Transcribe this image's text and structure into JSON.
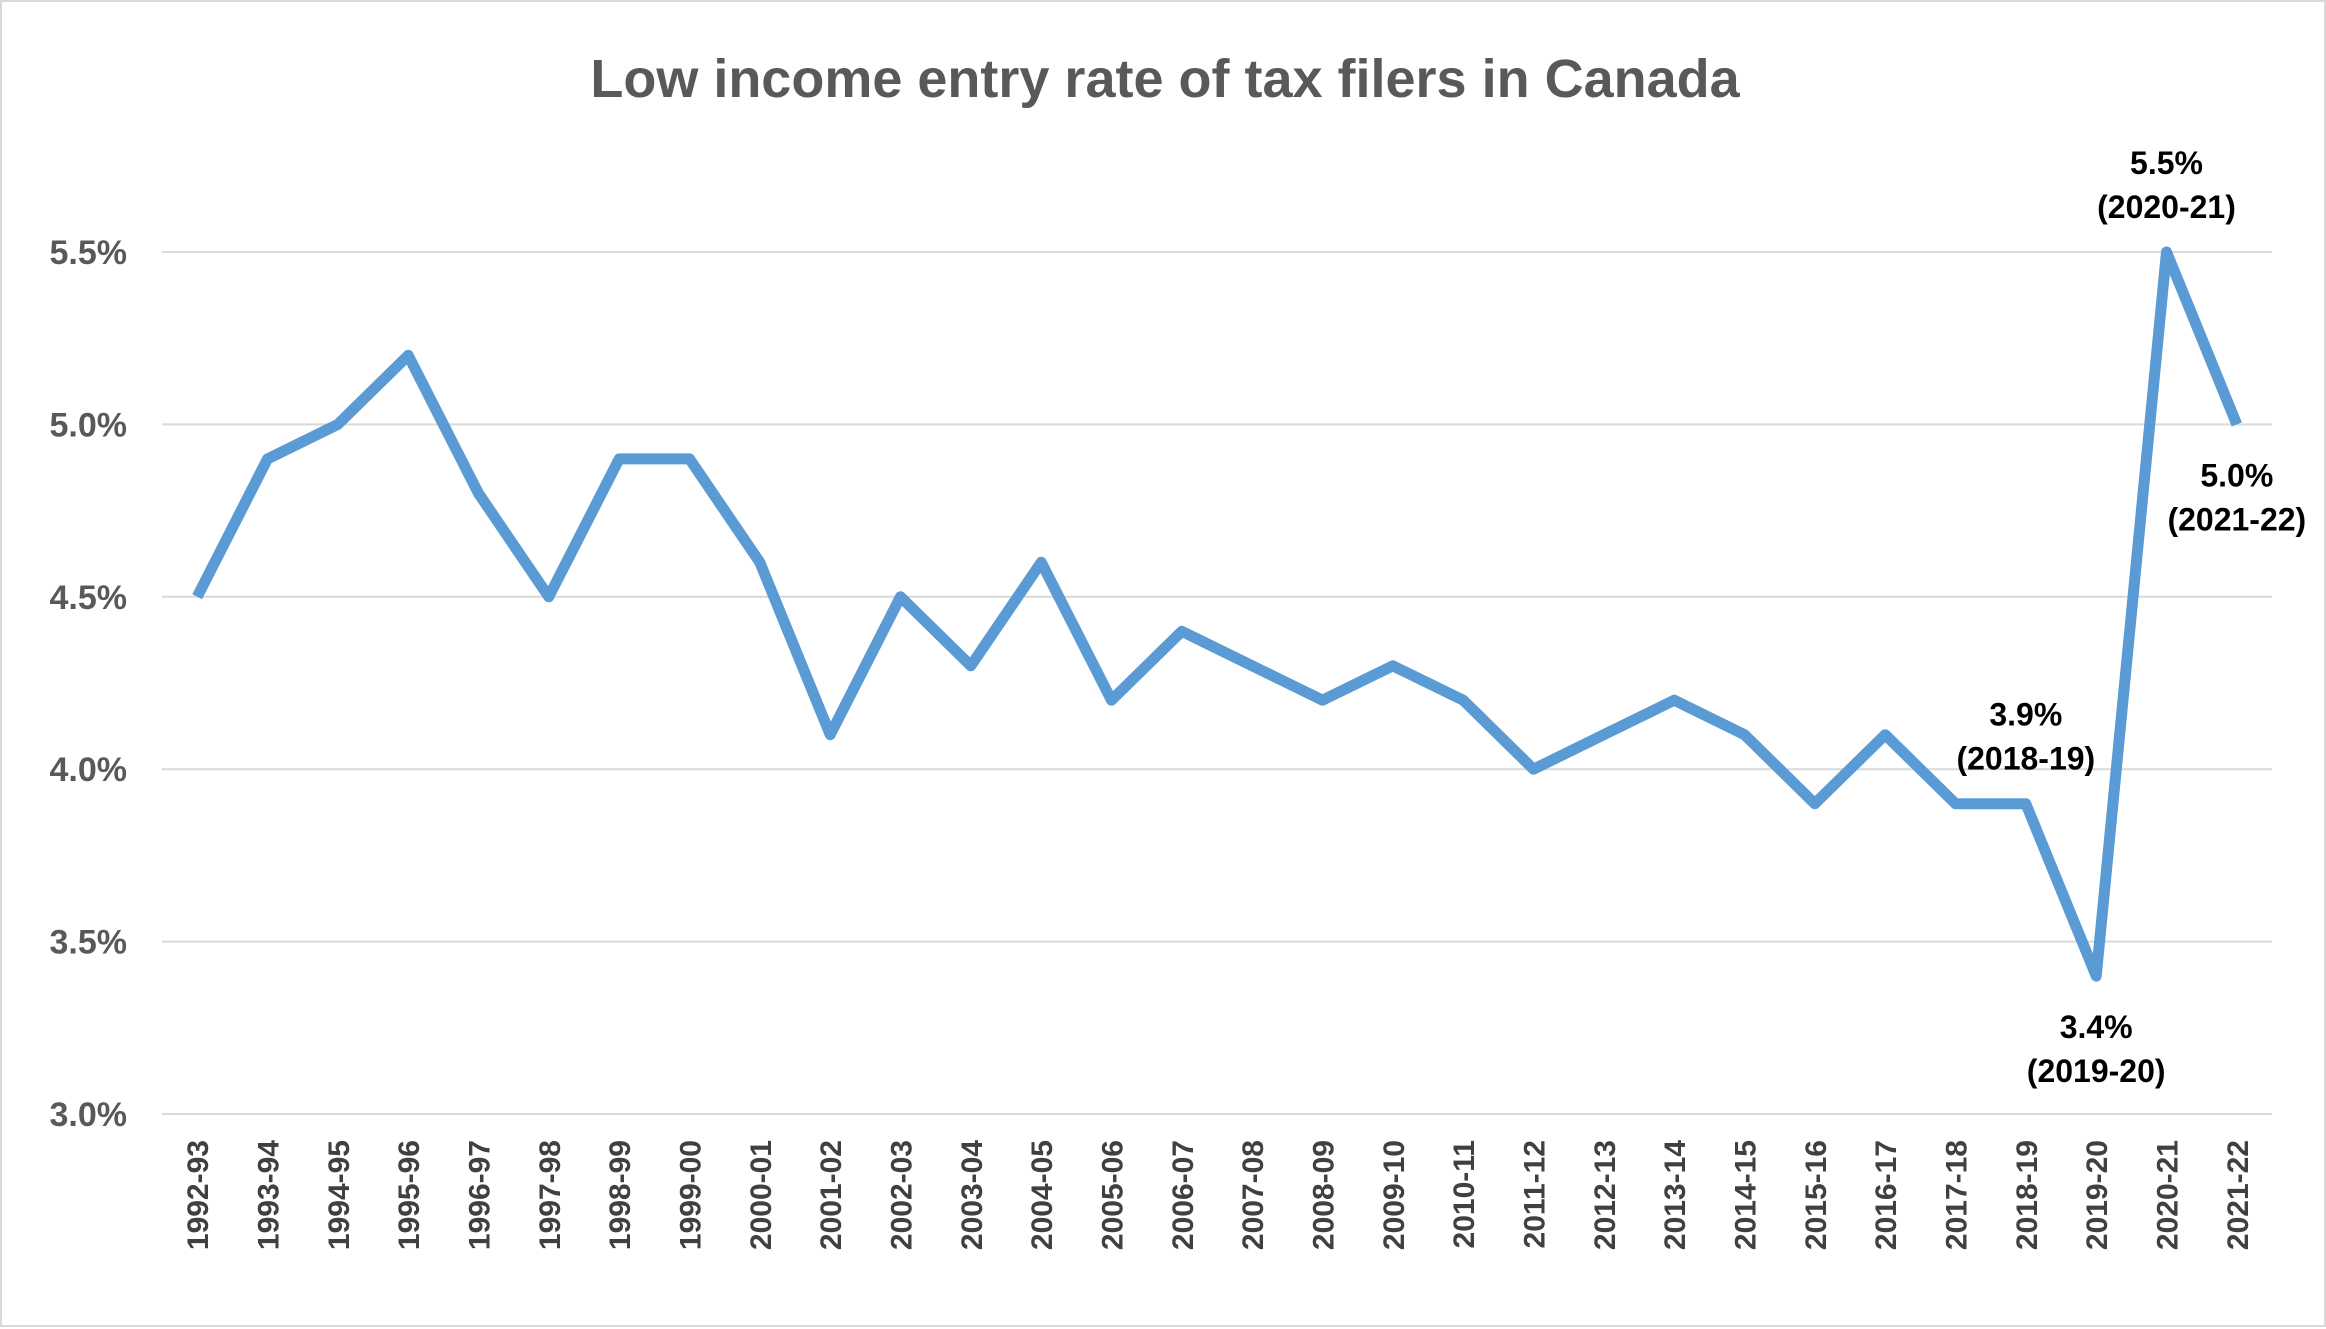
{
  "chart_data": {
    "type": "line",
    "title": "Low income entry rate of tax filers in Canada",
    "xlabel": "",
    "ylabel": "",
    "categories": [
      "1992-93",
      "1993-94",
      "1994-95",
      "1995-96",
      "1996-97",
      "1997-98",
      "1998-99",
      "1999-00",
      "2000-01",
      "2001-02",
      "2002-03",
      "2003-04",
      "2004-05",
      "2005-06",
      "2006-07",
      "2007-08",
      "2008-09",
      "2009-10",
      "2010-11",
      "2011-12",
      "2012-13",
      "2013-14",
      "2014-15",
      "2015-16",
      "2016-17",
      "2017-18",
      "2018-19",
      "2019-20",
      "2020-21",
      "2021-22"
    ],
    "series": [
      {
        "values": [
          4.5,
          4.9,
          5.0,
          5.2,
          4.8,
          4.5,
          4.9,
          4.9,
          4.6,
          4.1,
          4.5,
          4.3,
          4.6,
          4.2,
          4.4,
          4.3,
          4.2,
          4.3,
          4.2,
          4.0,
          4.1,
          4.2,
          4.1,
          3.9,
          4.1,
          3.9,
          3.9,
          3.4,
          5.5,
          5.0
        ],
        "color": "#5b9bd5"
      }
    ],
    "ylim": [
      3.0,
      5.5
    ],
    "yticks": [
      "3.0%",
      "3.5%",
      "4.0%",
      "4.5%",
      "5.0%",
      "5.5%"
    ],
    "ytick_values": [
      3.0,
      3.5,
      4.0,
      4.5,
      5.0,
      5.5
    ],
    "grid": true,
    "legend": "none",
    "annotations": [
      {
        "category_index": 26,
        "line1": "3.9%",
        "line2": "(2018-19)",
        "placement": "above"
      },
      {
        "category_index": 27,
        "line1": "3.4%",
        "line2": "(2019-20)",
        "placement": "below"
      },
      {
        "category_index": 28,
        "line1": "5.5%",
        "line2": "(2020-21)",
        "placement": "above"
      },
      {
        "category_index": 29,
        "line1": "5.0%",
        "line2": "(2021-22)",
        "placement": "below"
      }
    ]
  }
}
